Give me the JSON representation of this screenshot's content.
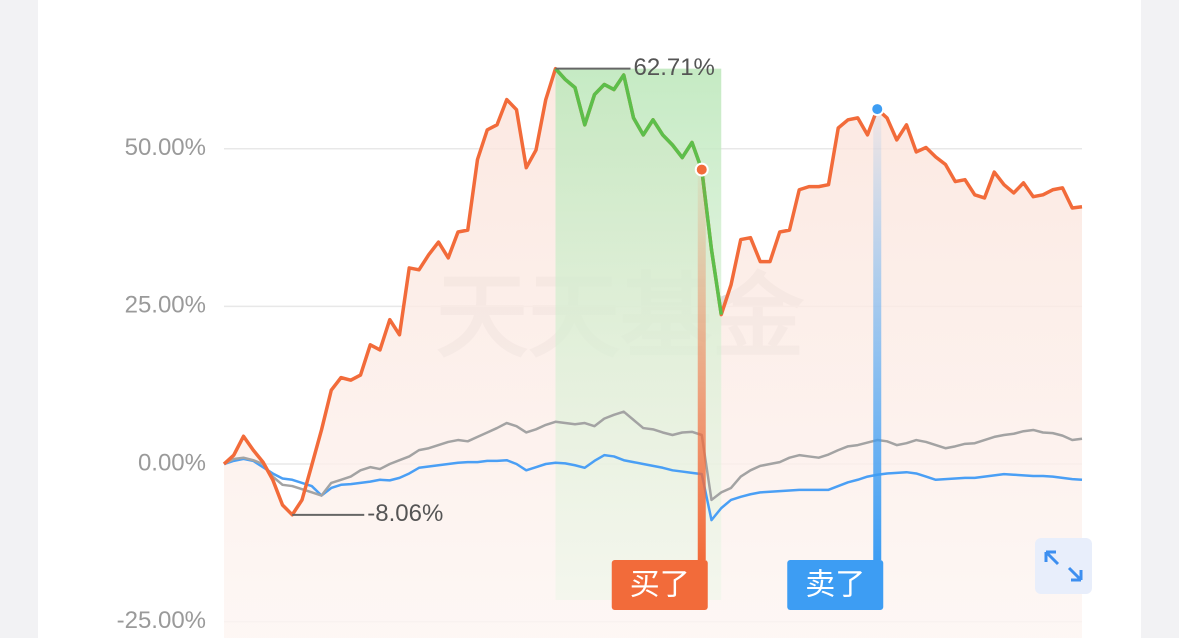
{
  "chart_data": {
    "type": "line",
    "watermark": "天天基金",
    "ylim": [
      -27.6,
      73.6
    ],
    "yticks": [
      {
        "value": -25,
        "label": "-25.00%"
      },
      {
        "value": 0,
        "label": "0.00%"
      },
      {
        "value": 25,
        "label": "25.00%"
      },
      {
        "value": 50,
        "label": "50.00%"
      }
    ],
    "grid": true,
    "series": [
      {
        "color": "#f26b3a",
        "values": [
          0,
          1.4,
          4.4,
          2.2,
          0.3,
          -2.5,
          -6.5,
          -8.06,
          -5.7,
          -0.2,
          5.4,
          11.7,
          13.7,
          13.3,
          14.1,
          18.9,
          18.1,
          22.9,
          20.5,
          31.1,
          30.8,
          33.2,
          35.2,
          32.7,
          36.8,
          37.1,
          48.3,
          53,
          53.8,
          57.8,
          56.2,
          47,
          49.8,
          57.8,
          62.71,
          61,
          59.7,
          53.8,
          58.6,
          60.2,
          59.4,
          61.7,
          54.9,
          52.2,
          54.6,
          52.2,
          50.6,
          48.6,
          51,
          46.7,
          34,
          23.7,
          28.4,
          35.6,
          35.9,
          32.1,
          32.1,
          36.8,
          37.1,
          43.5,
          44,
          44,
          44.3,
          53.3,
          54.6,
          54.9,
          52.2,
          56.3,
          54.9,
          51.4,
          53.8,
          49.5,
          50.2,
          48.7,
          47.5,
          44.8,
          45.1,
          42.7,
          42.2,
          46.3,
          44.3,
          43,
          44.6,
          42.4,
          42.7,
          43.5,
          43.8,
          40.6,
          40.8
        ]
      },
      {
        "color": "#a3a3a3",
        "values": [
          0,
          0.8,
          1,
          0.6,
          0,
          -2,
          -3.3,
          -3.5,
          -4,
          -4.5,
          -5,
          -3,
          -2.5,
          -2,
          -1,
          -0.5,
          -0.8,
          0,
          0.6,
          1.2,
          2.2,
          2.5,
          3,
          3.5,
          3.8,
          3.6,
          4.3,
          5,
          5.7,
          6.5,
          6,
          5,
          5.5,
          6.2,
          6.7,
          6.5,
          6.3,
          6.5,
          6,
          7.2,
          7.8,
          8.3,
          7,
          5.7,
          5.5,
          5,
          4.6,
          5,
          5.1,
          4.6,
          -5.7,
          -4.5,
          -3.8,
          -2,
          -1,
          -0.3,
          0,
          0.3,
          1,
          1.4,
          1.2,
          1,
          1.5,
          2.2,
          2.8,
          3,
          3.4,
          3.8,
          3.6,
          3,
          3.3,
          3.8,
          3.5,
          3,
          2.5,
          2.8,
          3.2,
          3.3,
          3.8,
          4.3,
          4.6,
          4.8,
          5.2,
          5.4,
          5,
          4.9,
          4.5,
          3.8,
          4
        ]
      },
      {
        "color": "#4a9ff5",
        "values": [
          0,
          0.5,
          0.8,
          0.5,
          -0.5,
          -1.5,
          -2.3,
          -2.5,
          -3,
          -3.5,
          -5,
          -3.8,
          -3.3,
          -3.2,
          -3,
          -2.8,
          -2.5,
          -2.6,
          -2.2,
          -1.5,
          -0.6,
          -0.4,
          -0.2,
          0,
          0.2,
          0.3,
          0.3,
          0.5,
          0.5,
          0.6,
          0,
          -1,
          -0.5,
          0,
          0.2,
          0.1,
          -0.2,
          -0.6,
          0.5,
          1.4,
          1.2,
          0.6,
          0.3,
          0,
          -0.3,
          -0.6,
          -1,
          -1.2,
          -1.4,
          -1.6,
          -8.9,
          -7,
          -5.7,
          -5.2,
          -4.8,
          -4.5,
          -4.4,
          -4.3,
          -4.2,
          -4.1,
          -4.1,
          -4.1,
          -4.1,
          -3.5,
          -2.9,
          -2.5,
          -2,
          -1.7,
          -1.5,
          -1.4,
          -1.3,
          -1.5,
          -2,
          -2.5,
          -2.4,
          -2.3,
          -2.2,
          -2.2,
          -2,
          -1.8,
          -1.6,
          -1.7,
          -1.8,
          -1.9,
          -1.9,
          -2,
          -2.2,
          -2.4,
          -2.5
        ]
      }
    ],
    "drawdown_color": "#5cbf4b",
    "max_label": {
      "value": 62.71,
      "label": "62.71%"
    },
    "min_label": {
      "value": -8.06,
      "label": "-8.06%"
    },
    "trades": [
      {
        "label": "买了",
        "x": 49,
        "color": "#f26b3a"
      },
      {
        "label": "卖了",
        "x": 67,
        "color": "#3d9df3"
      }
    ]
  }
}
